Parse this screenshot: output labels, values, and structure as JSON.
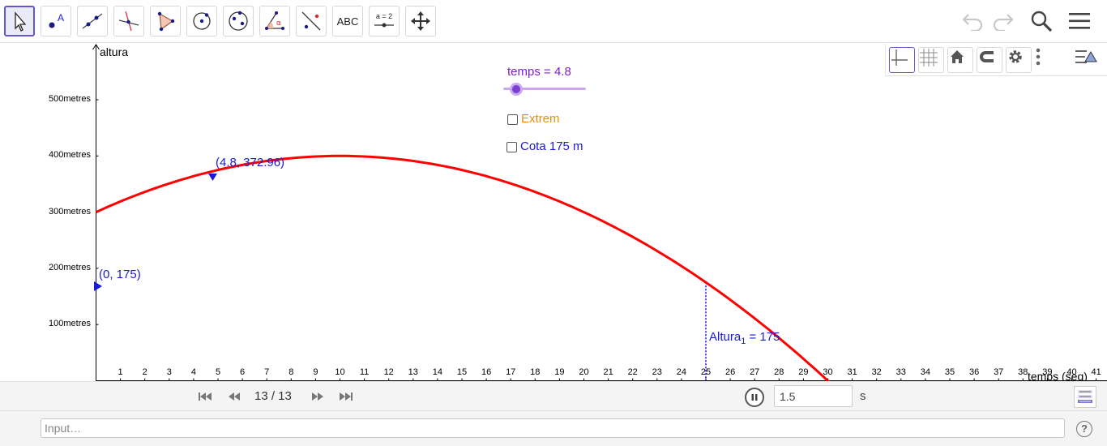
{
  "toolbar": {
    "tools": [
      {
        "name": "move-tool"
      },
      {
        "name": "point-tool",
        "label": "A"
      },
      {
        "name": "line-tool"
      },
      {
        "name": "perpendicular-line-tool"
      },
      {
        "name": "polygon-tool"
      },
      {
        "name": "circle-tool"
      },
      {
        "name": "ellipse-tool"
      },
      {
        "name": "angle-tool",
        "label": "α"
      },
      {
        "name": "reflect-tool"
      },
      {
        "name": "text-tool",
        "label": "ABC"
      },
      {
        "name": "slider-tool",
        "label": "a = 2"
      },
      {
        "name": "move-graphics-view-tool"
      }
    ],
    "right_icons": [
      "undo-icon",
      "redo-icon",
      "search-icon",
      "menu-icon"
    ]
  },
  "stylebar": {
    "icons": [
      "axes-icon",
      "grid-icon",
      "home-icon",
      "magnet-icon",
      "gear-icon",
      "more-icon",
      "style-toggle-icon"
    ]
  },
  "graph": {
    "y_axis_label": "altura",
    "x_axis_label": "temps (seg)",
    "y_ticks": [
      "100metres",
      "200metres",
      "300metres",
      "400metres",
      "500metres"
    ],
    "x_ticks": [
      "1",
      "2",
      "3",
      "4",
      "5",
      "6",
      "7",
      "8",
      "9",
      "10",
      "11",
      "12",
      "13",
      "14",
      "15",
      "16",
      "17",
      "18",
      "19",
      "20",
      "21",
      "22",
      "23",
      "24",
      "25",
      "26",
      "27",
      "28",
      "29",
      "30",
      "31",
      "32",
      "33",
      "34",
      "35",
      "36",
      "37",
      "38",
      "39",
      "40",
      "41"
    ],
    "point_current_label": "(4.8, 372.96)",
    "point_start_label": "(0, 175)",
    "line_label_main": "Altura",
    "line_label_sub": "1",
    "line_label_rest": " = 175",
    "curve_color": "#ff0000",
    "point_color": "#1a1ad6"
  },
  "slider": {
    "label": "temps = 4.8",
    "value": 4.8,
    "color": "#7b1fd6"
  },
  "checkboxes": [
    {
      "label": "Extrem",
      "color": "#e8900c",
      "checked": false
    },
    {
      "label": "Cota 175 m",
      "color": "#1a1ad6",
      "checked": false
    }
  ],
  "animation": {
    "step_text": "13 / 13",
    "speed_value": "1.5",
    "speed_unit": "s"
  },
  "input_bar": {
    "placeholder": "Input…",
    "help_label": "?"
  }
}
